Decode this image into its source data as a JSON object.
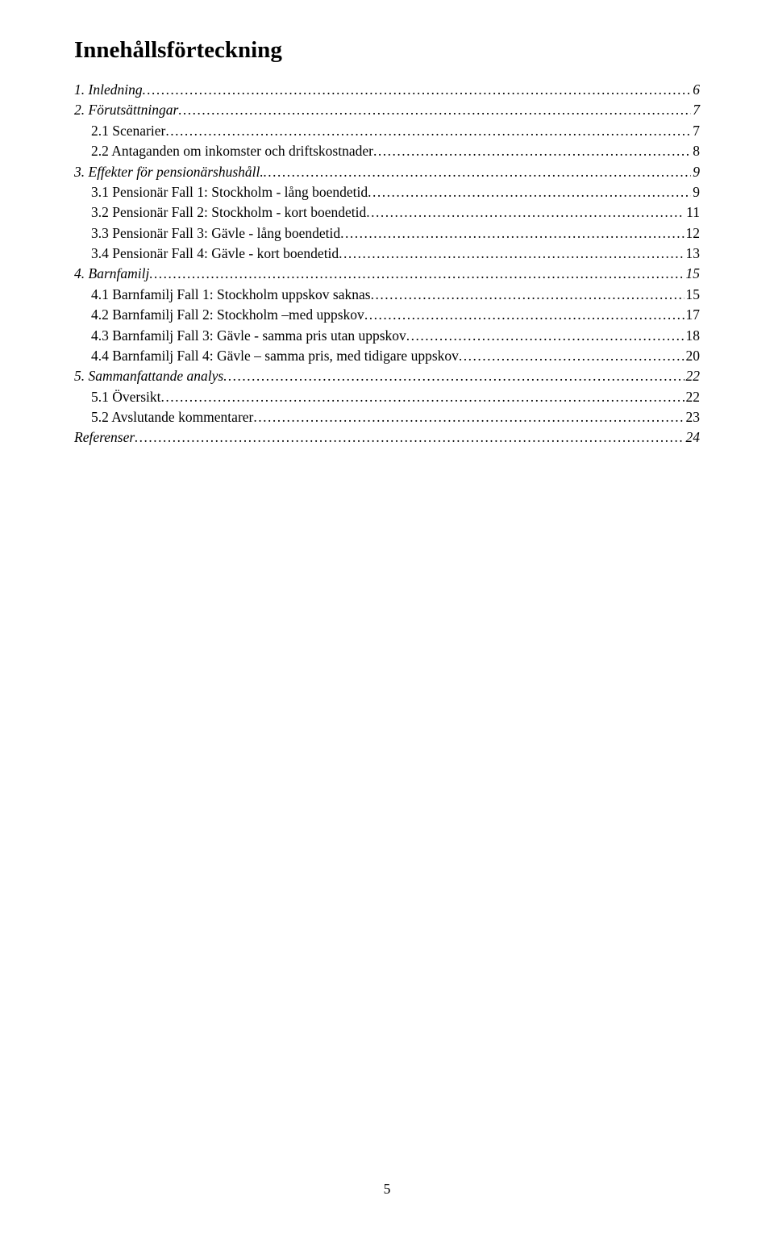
{
  "title": "Innehållsförteckning",
  "page_number": "5",
  "entries": [
    {
      "label": "1. Inledning",
      "page": "6",
      "italic": true,
      "indent": 0
    },
    {
      "label": "2. Förutsättningar",
      "page": "7",
      "italic": true,
      "indent": 0
    },
    {
      "label": "2.1  Scenarier",
      "page": "7",
      "italic": false,
      "indent": 1
    },
    {
      "label": "2.2  Antaganden om inkomster och driftskostnader",
      "page": "8",
      "italic": false,
      "indent": 1
    },
    {
      "label": "3. Effekter för pensionärshushåll.",
      "page": "9",
      "italic": true,
      "indent": 0
    },
    {
      "label": "3.1  Pensionär Fall 1: Stockholm - lång boendetid",
      "page": "9",
      "italic": false,
      "indent": 1
    },
    {
      "label": "3.2  Pensionär Fall 2: Stockholm - kort boendetid",
      "page": "11",
      "italic": false,
      "indent": 1
    },
    {
      "label": "3.3  Pensionär Fall 3: Gävle - lång boendetid",
      "page": "12",
      "italic": false,
      "indent": 1
    },
    {
      "label": "3.4  Pensionär Fall 4: Gävle - kort boendetid",
      "page": "13",
      "italic": false,
      "indent": 1
    },
    {
      "label": "4. Barnfamilj",
      "page": "15",
      "italic": true,
      "indent": 0
    },
    {
      "label": "4.1     Barnfamilj Fall 1: Stockholm uppskov saknas",
      "page": "15",
      "italic": false,
      "indent": 1
    },
    {
      "label": "4.2  Barnfamilj Fall 2: Stockholm –med uppskov",
      "page": "17",
      "italic": false,
      "indent": 1
    },
    {
      "label": "4.3  Barnfamilj Fall 3: Gävle - samma pris utan uppskov",
      "page": "18",
      "italic": false,
      "indent": 1
    },
    {
      "label": "4.4  Barnfamilj Fall 4: Gävle – samma pris, med tidigare uppskov",
      "page": "20",
      "italic": false,
      "indent": 1
    },
    {
      "label": "5. Sammanfattande analys",
      "page": "22",
      "italic": true,
      "indent": 0
    },
    {
      "label": "5.1  Översikt",
      "page": "22",
      "italic": false,
      "indent": 1
    },
    {
      "label": "5.2  Avslutande kommentarer",
      "page": "23",
      "italic": false,
      "indent": 1
    },
    {
      "label": "Referenser",
      "page": "24",
      "italic": true,
      "indent": 0
    }
  ]
}
